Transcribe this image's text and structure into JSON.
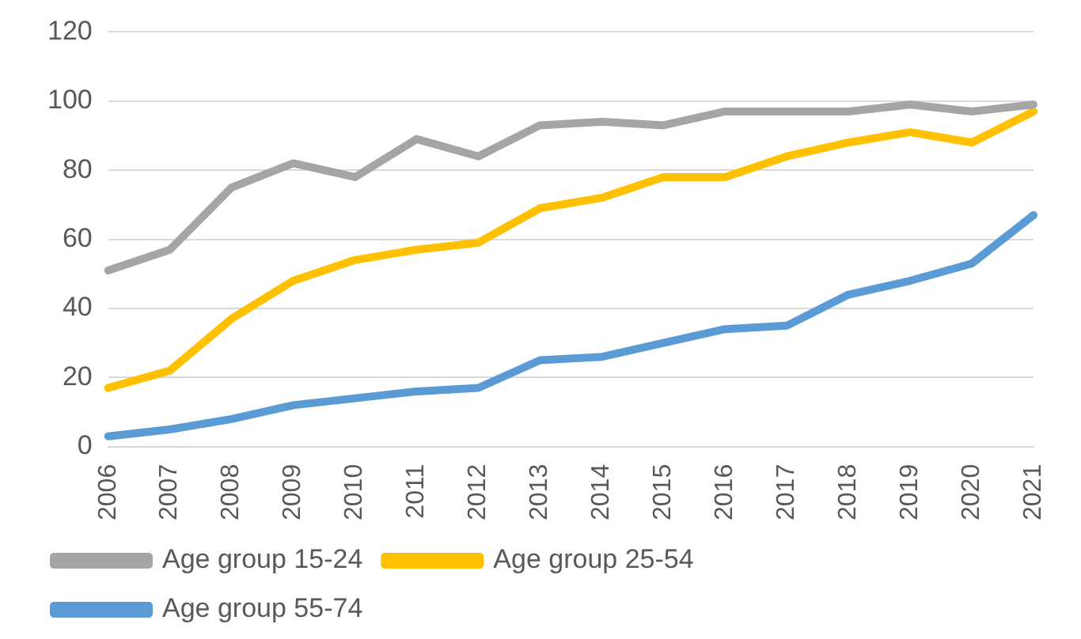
{
  "chart_data": {
    "type": "line",
    "categories": [
      "2006",
      "2007",
      "2008",
      "2009",
      "2010",
      "2011",
      "2012",
      "2013",
      "2014",
      "2015",
      "2016",
      "2017",
      "2018",
      "2019",
      "2020",
      "2021"
    ],
    "series": [
      {
        "name": "Age group 15-24",
        "color": "#a5a5a5",
        "values": [
          51,
          57,
          75,
          82,
          78,
          89,
          84,
          93,
          94,
          93,
          97,
          97,
          97,
          99,
          97,
          99
        ]
      },
      {
        "name": "Age group 25-54",
        "color": "#ffc000",
        "values": [
          17,
          22,
          37,
          48,
          54,
          57,
          59,
          69,
          72,
          78,
          78,
          84,
          88,
          91,
          88,
          97
        ]
      },
      {
        "name": "Age group 55-74",
        "color": "#5b9bd5",
        "values": [
          3,
          5,
          8,
          12,
          14,
          16,
          17,
          25,
          26,
          30,
          34,
          35,
          44,
          48,
          53,
          67
        ]
      }
    ],
    "ylim": [
      0,
      120
    ],
    "yticks": [
      0,
      20,
      40,
      60,
      80,
      100,
      120
    ],
    "grid": "y",
    "legend": "bottom",
    "marker": "none",
    "line_style": "solid"
  }
}
